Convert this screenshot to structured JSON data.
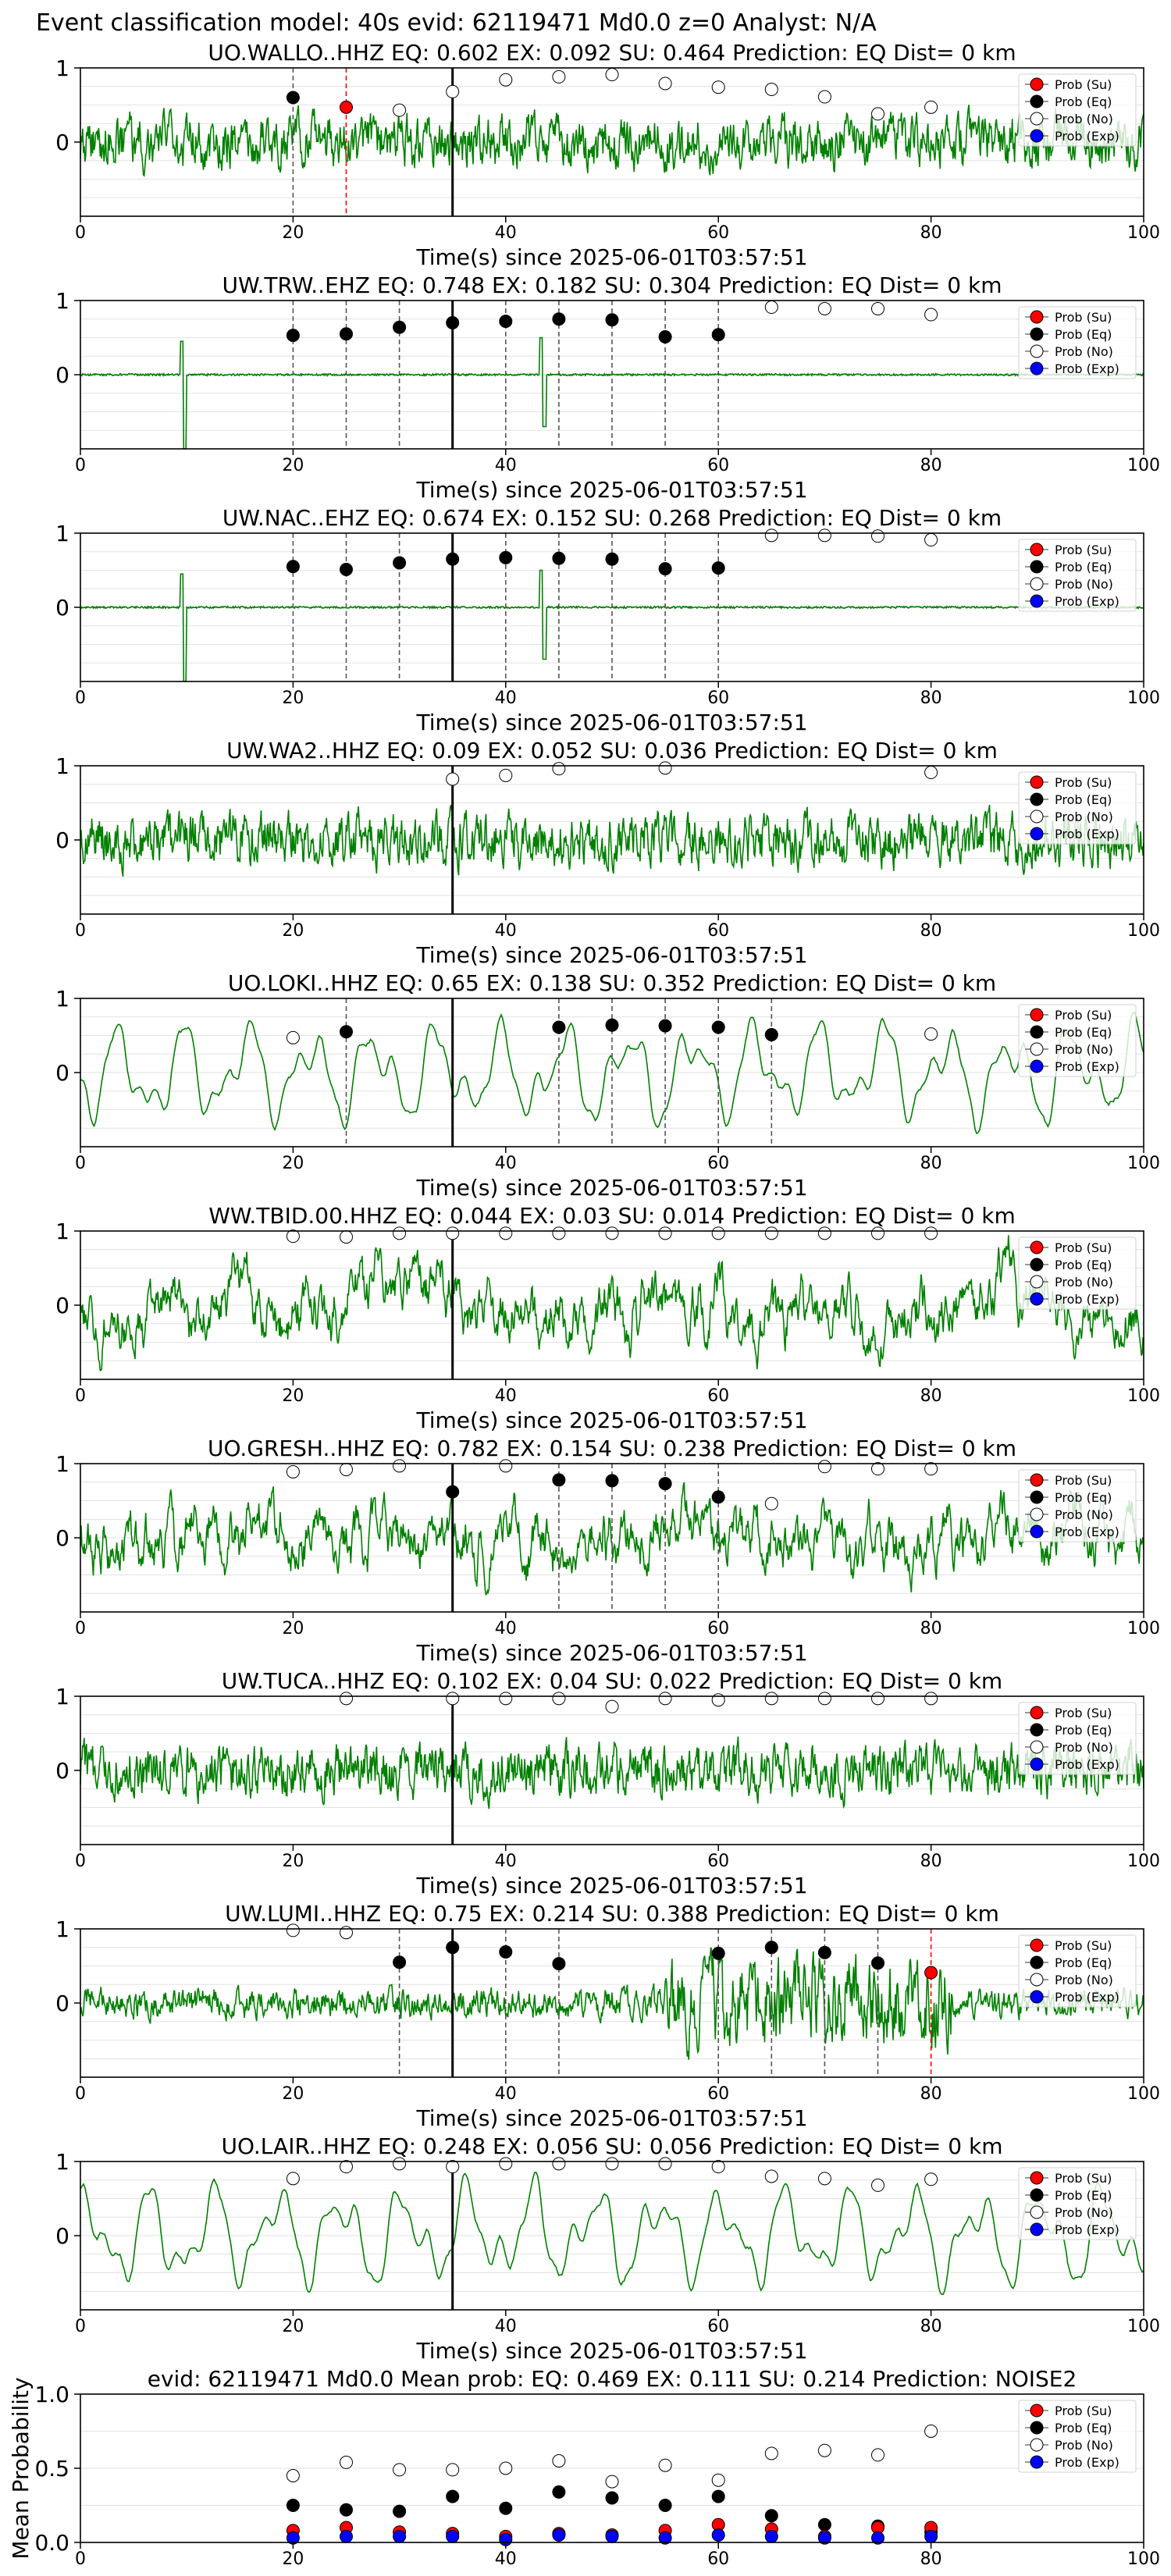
{
  "suptitle": "Event classification model: 40s evid: 62119471 Md0.0 z=0 Analyst: N/A",
  "colors": {
    "waveform": "#008000",
    "su": "#ff0000",
    "eq": "#000000",
    "no": "#ffffff",
    "exp": "#0000ff",
    "eq_line": "#555555",
    "su_line": "#ff0000",
    "marker_line": "#000000"
  },
  "legend_labels": [
    "Prob (Su)",
    "Prob (Eq)",
    "Prob (No)",
    "Prob (Exp)"
  ],
  "chart_data": [
    {
      "type": "line",
      "title": "UO.WALLO..HHZ   EQ: 0.602  EX: 0.092  SU: 0.464   Prediction: EQ    Dist= 0 km",
      "xlabel": "Time(s) since 2025-06-01T03:57:51",
      "xlim": [
        0,
        100
      ],
      "ylim": [
        -1,
        1
      ],
      "xticks": [
        "0",
        "20",
        "40",
        "60",
        "80",
        "100"
      ],
      "yticks": [
        "0",
        "1"
      ],
      "waveform_style": "noise",
      "marker_x": 35,
      "eq_points": [
        [
          20,
          0.6
        ]
      ],
      "su_points": [
        [
          25,
          0.47
        ]
      ],
      "no_points": [
        [
          30,
          0.43
        ],
        [
          35,
          0.68
        ],
        [
          40,
          0.84
        ],
        [
          45,
          0.88
        ],
        [
          50,
          0.91
        ],
        [
          55,
          0.79
        ],
        [
          60,
          0.74
        ],
        [
          65,
          0.71
        ],
        [
          70,
          0.61
        ],
        [
          75,
          0.38
        ],
        [
          80,
          0.47
        ]
      ],
      "exp_points": [],
      "eq_lines": [
        20
      ],
      "su_lines": [
        25
      ]
    },
    {
      "type": "line",
      "title": "UW.TRW..EHZ   EQ: 0.748  EX: 0.182  SU: 0.304   Prediction: EQ    Dist= 0 km",
      "xlabel": "Time(s) since 2025-06-01T03:57:51",
      "xlim": [
        0,
        100
      ],
      "ylim": [
        -1,
        1
      ],
      "xticks": [
        "0",
        "20",
        "40",
        "60",
        "80",
        "100"
      ],
      "yticks": [
        "0",
        "1"
      ],
      "waveform_style": "quiet",
      "marker_x": 35,
      "eq_points": [
        [
          20,
          0.53
        ],
        [
          25,
          0.55
        ],
        [
          30,
          0.64
        ],
        [
          35,
          0.7
        ],
        [
          40,
          0.72
        ],
        [
          45,
          0.75
        ],
        [
          50,
          0.74
        ],
        [
          55,
          0.51
        ],
        [
          60,
          0.54
        ]
      ],
      "su_points": [],
      "no_points": [
        [
          65,
          0.91
        ],
        [
          70,
          0.89
        ],
        [
          75,
          0.89
        ],
        [
          80,
          0.81
        ]
      ],
      "exp_points": [],
      "eq_lines": [
        20,
        25,
        30,
        40,
        45,
        50,
        55,
        60
      ],
      "su_lines": []
    },
    {
      "type": "line",
      "title": "UW.NAC..EHZ   EQ: 0.674  EX: 0.152  SU: 0.268   Prediction: EQ    Dist= 0 km",
      "xlabel": "Time(s) since 2025-06-01T03:57:51",
      "xlim": [
        0,
        100
      ],
      "ylim": [
        -1,
        1
      ],
      "xticks": [
        "0",
        "20",
        "40",
        "60",
        "80",
        "100"
      ],
      "yticks": [
        "0",
        "1"
      ],
      "waveform_style": "quiet",
      "marker_x": 35,
      "eq_points": [
        [
          20,
          0.55
        ],
        [
          25,
          0.51
        ],
        [
          30,
          0.6
        ],
        [
          35,
          0.65
        ],
        [
          40,
          0.67
        ],
        [
          45,
          0.66
        ],
        [
          50,
          0.65
        ],
        [
          55,
          0.52
        ],
        [
          60,
          0.53
        ]
      ],
      "su_points": [],
      "no_points": [
        [
          65,
          0.97
        ],
        [
          70,
          0.97
        ],
        [
          75,
          0.96
        ],
        [
          80,
          0.91
        ]
      ],
      "exp_points": [],
      "eq_lines": [
        20,
        25,
        30,
        40,
        45,
        50,
        55,
        60
      ],
      "su_lines": []
    },
    {
      "type": "line",
      "title": "UW.WA2..HHZ   EQ: 0.09  EX: 0.052  SU: 0.036   Prediction: EQ    Dist= 0 km",
      "xlabel": "Time(s) since 2025-06-01T03:57:51",
      "xlim": [
        0,
        100
      ],
      "ylim": [
        -1,
        1
      ],
      "xticks": [
        "0",
        "20",
        "40",
        "60",
        "80",
        "100"
      ],
      "yticks": [
        "0",
        "1"
      ],
      "waveform_style": "noise",
      "marker_x": 35,
      "eq_points": [],
      "su_points": [],
      "no_points": [
        [
          35,
          0.82
        ],
        [
          40,
          0.87
        ],
        [
          45,
          0.96
        ],
        [
          55,
          0.97
        ],
        [
          80,
          0.91
        ]
      ],
      "exp_points": [],
      "eq_lines": [],
      "su_lines": []
    },
    {
      "type": "line",
      "title": "UO.LOKI..HHZ   EQ: 0.65  EX: 0.138  SU: 0.352   Prediction: EQ    Dist= 0 km",
      "xlabel": "Time(s) since 2025-06-01T03:57:51",
      "xlim": [
        0,
        100
      ],
      "ylim": [
        -1,
        1
      ],
      "xticks": [
        "0",
        "20",
        "40",
        "60",
        "80",
        "100"
      ],
      "yticks": [
        "0",
        "1"
      ],
      "waveform_style": "smooth",
      "marker_x": 35,
      "eq_points": [
        [
          25,
          0.55
        ],
        [
          45,
          0.61
        ],
        [
          50,
          0.64
        ],
        [
          55,
          0.63
        ],
        [
          60,
          0.61
        ],
        [
          65,
          0.51
        ]
      ],
      "su_points": [],
      "no_points": [
        [
          20,
          0.47
        ],
        [
          80,
          0.52
        ]
      ],
      "exp_points": [],
      "eq_lines": [
        25,
        45,
        50,
        55,
        60,
        65
      ],
      "su_lines": []
    },
    {
      "type": "line",
      "title": "WW.TBID.00.HHZ   EQ: 0.044  EX: 0.03  SU: 0.014   Prediction: EQ    Dist= 0 km",
      "xlabel": "Time(s) since 2025-06-01T03:57:51",
      "xlim": [
        0,
        100
      ],
      "ylim": [
        -1,
        1
      ],
      "xticks": [
        "0",
        "20",
        "40",
        "60",
        "80",
        "100"
      ],
      "yticks": [
        "0",
        "1"
      ],
      "waveform_style": "rough",
      "marker_x": 35,
      "eq_points": [],
      "su_points": [],
      "no_points": [
        [
          20,
          0.93
        ],
        [
          25,
          0.92
        ],
        [
          30,
          0.97
        ],
        [
          35,
          0.97
        ],
        [
          40,
          0.97
        ],
        [
          45,
          0.97
        ],
        [
          50,
          0.97
        ],
        [
          55,
          0.97
        ],
        [
          60,
          0.97
        ],
        [
          65,
          0.97
        ],
        [
          70,
          0.97
        ],
        [
          75,
          0.97
        ],
        [
          80,
          0.97
        ]
      ],
      "exp_points": [],
      "eq_lines": [],
      "su_lines": []
    },
    {
      "type": "line",
      "title": "UO.GRESH..HHZ   EQ: 0.782  EX: 0.154  SU: 0.238   Prediction: EQ    Dist= 0 km",
      "xlabel": "Time(s) since 2025-06-01T03:57:51",
      "xlim": [
        0,
        100
      ],
      "ylim": [
        -1,
        1
      ],
      "xticks": [
        "0",
        "20",
        "40",
        "60",
        "80",
        "100"
      ],
      "yticks": [
        "0",
        "1"
      ],
      "waveform_style": "rough",
      "marker_x": 35,
      "eq_points": [
        [
          35,
          0.62
        ],
        [
          45,
          0.78
        ],
        [
          50,
          0.77
        ],
        [
          55,
          0.73
        ],
        [
          60,
          0.55
        ]
      ],
      "su_points": [],
      "no_points": [
        [
          20,
          0.89
        ],
        [
          25,
          0.92
        ],
        [
          30,
          0.97
        ],
        [
          40,
          0.97
        ],
        [
          65,
          0.46
        ],
        [
          70,
          0.96
        ],
        [
          75,
          0.93
        ],
        [
          80,
          0.93
        ]
      ],
      "exp_points": [],
      "eq_lines": [
        45,
        50,
        55,
        60
      ],
      "su_lines": []
    },
    {
      "type": "line",
      "title": "UW.TUCA..HHZ   EQ: 0.102  EX: 0.04  SU: 0.022   Prediction: EQ    Dist= 0 km",
      "xlabel": "Time(s) since 2025-06-01T03:57:51",
      "xlim": [
        0,
        100
      ],
      "ylim": [
        -1,
        1
      ],
      "xticks": [
        "0",
        "20",
        "40",
        "60",
        "80",
        "100"
      ],
      "yticks": [
        "0",
        "1"
      ],
      "waveform_style": "noise",
      "marker_x": 35,
      "eq_points": [],
      "su_points": [],
      "no_points": [
        [
          25,
          0.97
        ],
        [
          35,
          0.97
        ],
        [
          40,
          0.97
        ],
        [
          45,
          0.97
        ],
        [
          50,
          0.86
        ],
        [
          55,
          0.97
        ],
        [
          60,
          0.95
        ],
        [
          65,
          0.97
        ],
        [
          70,
          0.97
        ],
        [
          75,
          0.97
        ],
        [
          80,
          0.97
        ]
      ],
      "exp_points": [],
      "eq_lines": [],
      "su_lines": []
    },
    {
      "type": "line",
      "title": "UW.LUMI..HHZ   EQ: 0.75  EX: 0.214  SU: 0.388   Prediction: EQ    Dist= 0 km",
      "xlabel": "Time(s) since 2025-06-01T03:57:51",
      "xlim": [
        0,
        100
      ],
      "ylim": [
        -1,
        1
      ],
      "xticks": [
        "0",
        "20",
        "40",
        "60",
        "80",
        "100"
      ],
      "yticks": [
        "0",
        "1"
      ],
      "waveform_style": "lumi",
      "marker_x": 35,
      "eq_points": [
        [
          30,
          0.55
        ],
        [
          35,
          0.75
        ],
        [
          40,
          0.69
        ],
        [
          45,
          0.53
        ],
        [
          60,
          0.67
        ],
        [
          65,
          0.75
        ],
        [
          70,
          0.68
        ],
        [
          75,
          0.54
        ]
      ],
      "su_points": [
        [
          80,
          0.41
        ]
      ],
      "no_points": [
        [
          20,
          0.98
        ],
        [
          25,
          0.95
        ]
      ],
      "exp_points": [],
      "eq_lines": [
        30,
        40,
        45,
        60,
        65,
        70,
        75
      ],
      "su_lines": [
        80
      ]
    },
    {
      "type": "line",
      "title": "UO.LAIR..HHZ   EQ: 0.248  EX: 0.056  SU: 0.056   Prediction: EQ    Dist= 0 km",
      "xlabel": "Time(s) since 2025-06-01T03:57:51",
      "xlim": [
        0,
        100
      ],
      "ylim": [
        -1,
        1
      ],
      "xticks": [
        "0",
        "20",
        "40",
        "60",
        "80",
        "100"
      ],
      "yticks": [
        "0",
        "1"
      ],
      "waveform_style": "smooth",
      "marker_x": 35,
      "eq_points": [],
      "su_points": [],
      "no_points": [
        [
          20,
          0.77
        ],
        [
          25,
          0.93
        ],
        [
          30,
          0.97
        ],
        [
          35,
          0.93
        ],
        [
          40,
          0.97
        ],
        [
          45,
          0.97
        ],
        [
          50,
          0.97
        ],
        [
          55,
          0.97
        ],
        [
          60,
          0.93
        ],
        [
          65,
          0.8
        ],
        [
          70,
          0.77
        ],
        [
          75,
          0.68
        ],
        [
          80,
          0.76
        ]
      ],
      "exp_points": [],
      "eq_lines": [],
      "su_lines": []
    },
    {
      "type": "scatter",
      "title": "evid: 62119471  Md0.0   Mean prob:   EQ: 0.469  EX: 0.111  SU: 0.214   Prediction: NOISE2",
      "ylabel": "Mean Probability",
      "xlim": [
        0,
        100
      ],
      "ylim": [
        0,
        1
      ],
      "xticks": [
        "0",
        "20",
        "40",
        "60",
        "80",
        "100"
      ],
      "yticks": [
        "0.0",
        "0.5",
        "1.0"
      ],
      "x": [
        20,
        25,
        30,
        35,
        40,
        45,
        50,
        55,
        60,
        65,
        70,
        75,
        80
      ],
      "series": [
        {
          "name": "Prob (Su)",
          "values": [
            0.08,
            0.1,
            0.07,
            0.06,
            0.04,
            0.06,
            0.05,
            0.08,
            0.12,
            0.09,
            0.04,
            0.1,
            0.1
          ]
        },
        {
          "name": "Prob (Eq)",
          "values": [
            0.25,
            0.22,
            0.21,
            0.31,
            0.23,
            0.34,
            0.3,
            0.25,
            0.31,
            0.18,
            0.12,
            0.11,
            0.07
          ]
        },
        {
          "name": "Prob (No)",
          "values": [
            0.45,
            0.54,
            0.49,
            0.49,
            0.5,
            0.55,
            0.41,
            0.52,
            0.42,
            0.6,
            0.62,
            0.59,
            0.75
          ]
        },
        {
          "name": "Prob (Exp)",
          "values": [
            0.03,
            0.04,
            0.04,
            0.04,
            0.02,
            0.05,
            0.04,
            0.03,
            0.05,
            0.04,
            0.03,
            0.03,
            0.04
          ]
        }
      ]
    }
  ]
}
